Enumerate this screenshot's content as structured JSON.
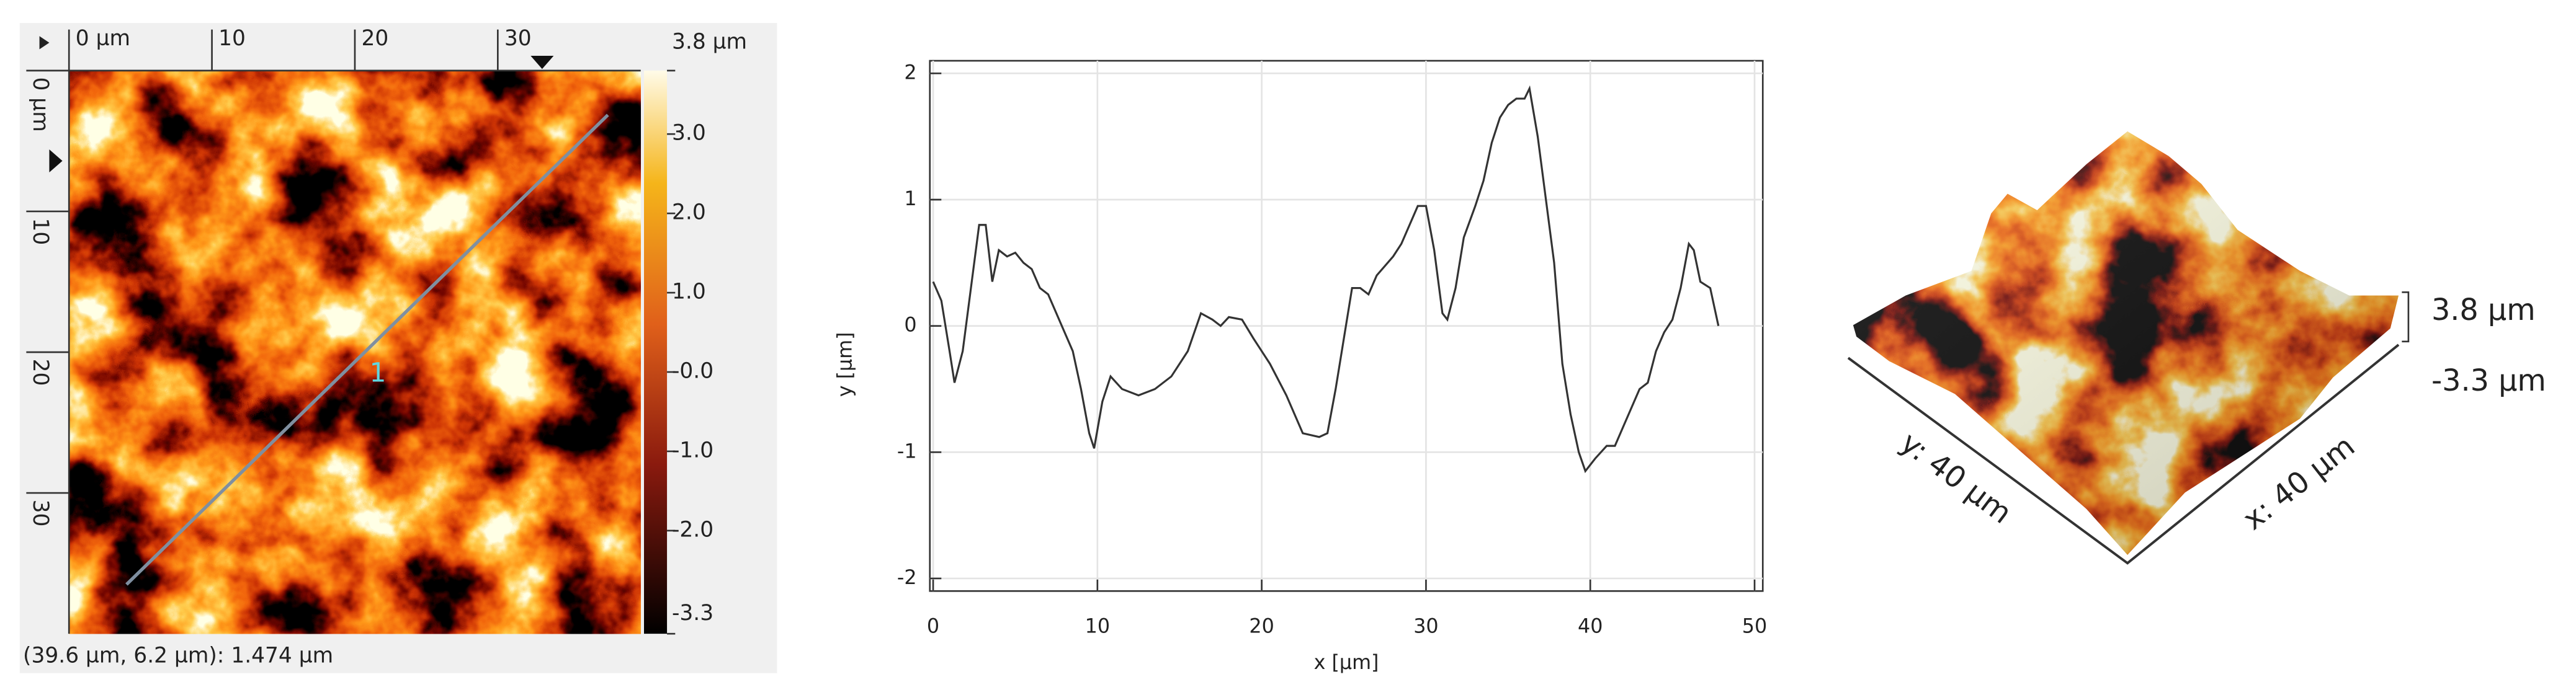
{
  "afm_image": {
    "x_ruler": {
      "lim": [
        0,
        40
      ],
      "ticks": [
        {
          "value": 0,
          "label": "0 µm"
        },
        10,
        20,
        30
      ]
    },
    "y_ruler": {
      "lim": [
        0,
        40
      ],
      "ticks": [
        {
          "value": 0,
          "label": "0 µm"
        },
        10,
        20,
        30
      ]
    },
    "color_scale": {
      "lim": [
        -3.3,
        3.8
      ],
      "ticks": [
        {
          "value": 3.8,
          "label": "3.8 µm"
        },
        {
          "value": 3,
          "label": "3.0"
        },
        {
          "value": 2,
          "label": "2.0"
        },
        {
          "value": 1,
          "label": "1.0"
        },
        {
          "value": 0,
          "label": "-0.0"
        },
        {
          "value": -1,
          "label": "-1.0"
        },
        {
          "value": -2,
          "label": "-2.0"
        },
        {
          "value": -3.3,
          "label": "-3.3"
        }
      ]
    },
    "profile_label": "1",
    "status": "(39.6 µm, 6.2 µm): 1.474 µm"
  },
  "chart_data": {
    "type": "line",
    "x_label": "x [µm]",
    "y_label": "y [µm]",
    "x": [
      0,
      0.5,
      1,
      1.3,
      1.8,
      2.3,
      2.8,
      3.2,
      3.6,
      4,
      4.5,
      5,
      5.5,
      6,
      6.5,
      7,
      7.5,
      8,
      8.5,
      9,
      9.5,
      9.8,
      10.3,
      10.8,
      11.5,
      12.5,
      13.5,
      14.5,
      15.5,
      16.3,
      17,
      17.5,
      18,
      18.8,
      19.5,
      20.5,
      21.5,
      22.5,
      23.5,
      24,
      24.5,
      25,
      25.5,
      26,
      26.5,
      27,
      28,
      28.5,
      29,
      29.5,
      30,
      30.5,
      31,
      31.3,
      31.8,
      32.3,
      33,
      33.5,
      34,
      34.5,
      35,
      35.5,
      36,
      36.3,
      36.8,
      37.3,
      37.8,
      38.3,
      38.8,
      39.3,
      39.7,
      40.3,
      41,
      41.5,
      42,
      42.5,
      43,
      43.5,
      44,
      44.5,
      45,
      45.5,
      46,
      46.3,
      46.7,
      47.3,
      47.8
    ],
    "series": [
      {
        "color": "#333333",
        "values": [
          0.35,
          0.2,
          -0.2,
          -0.45,
          -0.2,
          0.3,
          0.8,
          0.8,
          0.35,
          0.6,
          0.55,
          0.58,
          0.5,
          0.45,
          0.3,
          0.25,
          0.1,
          -0.05,
          -0.2,
          -0.5,
          -0.85,
          -0.97,
          -0.6,
          -0.4,
          -0.5,
          -0.55,
          -0.5,
          -0.4,
          -0.2,
          0.1,
          0.05,
          0,
          0.07,
          0.05,
          -0.1,
          -0.3,
          -0.55,
          -0.85,
          -0.88,
          -0.85,
          -0.5,
          -0.1,
          0.3,
          0.3,
          0.25,
          0.4,
          0.55,
          0.65,
          0.8,
          0.95,
          0.95,
          0.6,
          0.1,
          0.05,
          0.3,
          0.7,
          0.95,
          1.15,
          1.45,
          1.65,
          1.75,
          1.8,
          1.8,
          1.88,
          1.5,
          1,
          0.5,
          -0.3,
          -0.7,
          -1,
          -1.15,
          -1.05,
          -0.95,
          -0.95,
          -0.8,
          -0.65,
          -0.5,
          -0.45,
          -0.2,
          -0.05,
          0.05,
          0.3,
          0.65,
          0.6,
          0.35,
          0.3,
          0
        ]
      }
    ],
    "xlim": [
      -0.2,
      50.5
    ],
    "ylim": [
      -2.1,
      2.1
    ],
    "xticks": [
      0,
      10,
      20,
      30,
      40,
      50
    ],
    "yticks": [
      -2,
      -1,
      0,
      1,
      2
    ],
    "grid": true
  },
  "view_3d": {
    "x_axis_label": "x: 40 µm",
    "y_axis_label": "y: 40 µm",
    "z_max_label": "3.8 µm",
    "z_min_label": "-3.3 µm"
  }
}
